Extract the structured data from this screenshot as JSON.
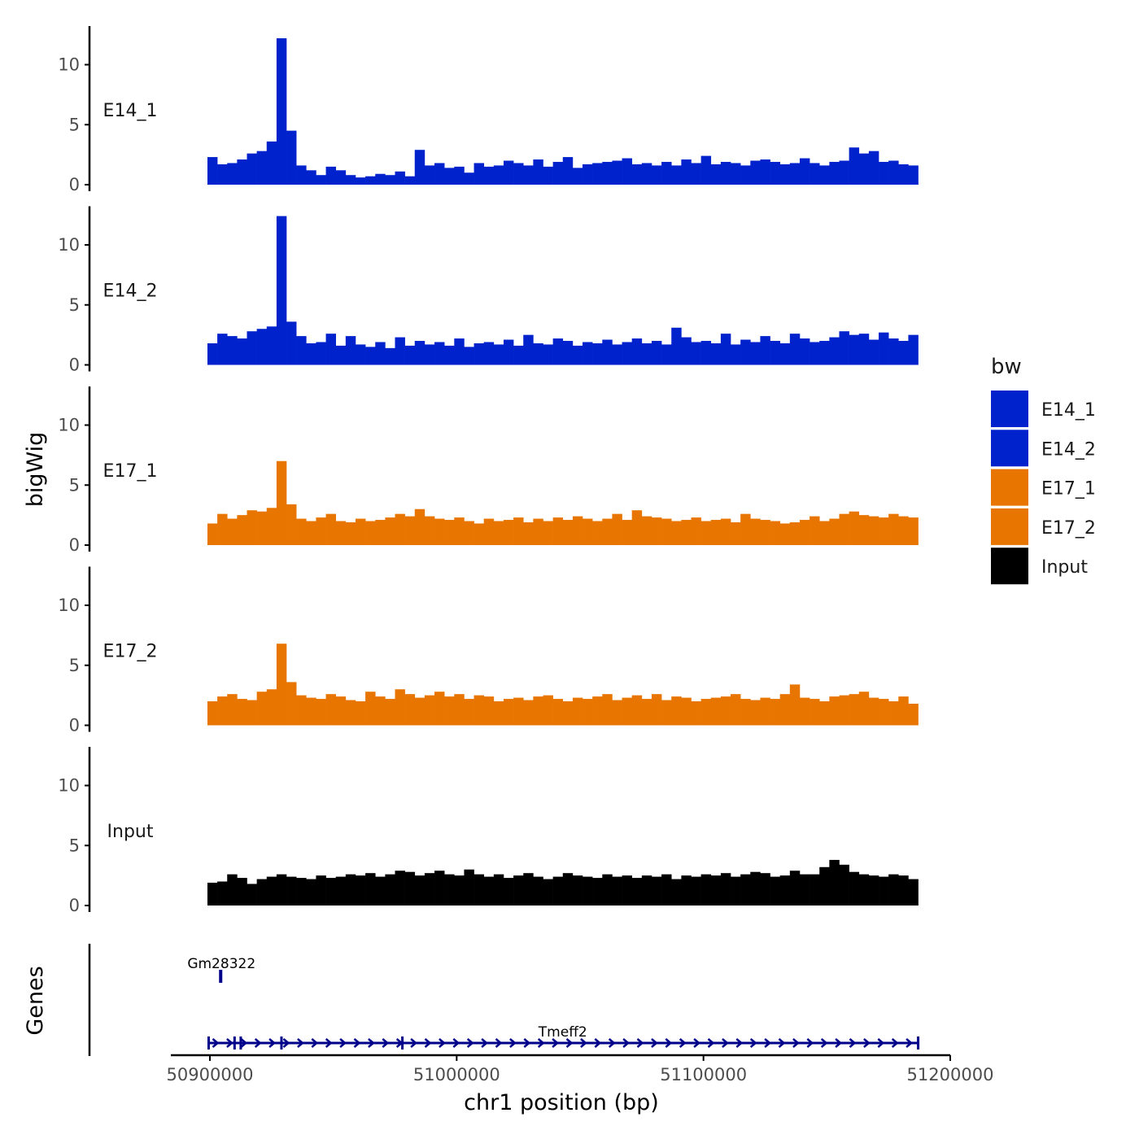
{
  "chart_data": {
    "type": "area",
    "title": "",
    "xlabel": "chr1 position (bp)",
    "ylabel": "bigWig",
    "gene_track_label": "Genes",
    "xlim": [
      50884000,
      51200000
    ],
    "x_ticks": [
      50900000,
      51000000,
      51100000,
      51200000
    ],
    "x_tick_labels": [
      "50900000",
      "51000000",
      "51100000",
      "51200000"
    ],
    "ylim": [
      0,
      13.3
    ],
    "y_ticks": [
      0,
      5,
      10
    ],
    "y_tick_labels": [
      "0",
      "5",
      "10"
    ],
    "bin_start": 50899000,
    "bin_size": 4000,
    "legend": {
      "title": "bw",
      "position": "right"
    },
    "series": [
      {
        "name": "E14_1",
        "color": "#0022CC",
        "values": [
          2.3,
          1.7,
          1.8,
          2.1,
          2.6,
          2.8,
          3.6,
          12.2,
          4.5,
          1.6,
          1.2,
          0.8,
          1.5,
          1.2,
          0.8,
          0.6,
          0.7,
          0.9,
          0.8,
          1.1,
          0.7,
          2.9,
          1.6,
          1.8,
          1.4,
          1.5,
          1.0,
          1.8,
          1.5,
          1.6,
          2.0,
          1.8,
          1.6,
          2.1,
          1.5,
          1.9,
          2.3,
          1.4,
          1.7,
          1.8,
          1.9,
          2.0,
          2.2,
          1.7,
          1.8,
          1.6,
          1.9,
          1.6,
          2.1,
          1.8,
          2.4,
          1.7,
          1.9,
          1.8,
          1.6,
          2.0,
          2.1,
          1.9,
          1.7,
          1.8,
          2.2,
          1.8,
          1.6,
          1.9,
          2.0,
          3.1,
          2.6,
          2.8,
          1.9,
          2.0,
          1.7,
          1.6
        ]
      },
      {
        "name": "E14_2",
        "color": "#0022CC",
        "values": [
          1.8,
          2.6,
          2.4,
          2.2,
          2.8,
          3.0,
          3.2,
          12.4,
          3.6,
          2.4,
          1.8,
          1.9,
          2.6,
          1.6,
          2.4,
          1.7,
          1.5,
          1.9,
          1.4,
          2.3,
          1.6,
          2.0,
          1.7,
          1.9,
          1.6,
          2.2,
          1.5,
          1.8,
          1.9,
          1.7,
          2.1,
          1.6,
          2.5,
          1.8,
          1.7,
          2.2,
          2.0,
          1.6,
          1.9,
          1.8,
          2.1,
          1.7,
          1.9,
          2.2,
          1.8,
          2.0,
          1.7,
          3.1,
          2.3,
          1.9,
          2.0,
          1.8,
          2.6,
          1.7,
          2.1,
          1.9,
          2.4,
          2.0,
          1.8,
          2.6,
          2.2,
          1.9,
          2.0,
          2.3,
          2.8,
          2.5,
          2.6,
          2.1,
          2.7,
          2.2,
          2.0,
          2.5
        ]
      },
      {
        "name": "E17_1",
        "color": "#E87500",
        "values": [
          1.8,
          2.6,
          2.2,
          2.5,
          2.9,
          2.8,
          3.1,
          7.0,
          3.4,
          2.2,
          2.0,
          2.3,
          2.6,
          2.0,
          1.9,
          2.2,
          2.0,
          2.1,
          2.3,
          2.6,
          2.4,
          3.0,
          2.4,
          2.2,
          2.1,
          2.3,
          2.0,
          1.8,
          2.2,
          2.0,
          2.1,
          2.3,
          1.9,
          2.2,
          2.0,
          2.3,
          2.1,
          2.4,
          2.2,
          2.0,
          2.2,
          2.6,
          2.1,
          2.9,
          2.4,
          2.3,
          2.2,
          2.0,
          2.1,
          2.3,
          2.0,
          2.1,
          2.2,
          1.9,
          2.6,
          2.2,
          2.1,
          2.0,
          1.8,
          1.9,
          2.1,
          2.4,
          2.0,
          2.2,
          2.6,
          2.8,
          2.5,
          2.4,
          2.3,
          2.6,
          2.4,
          2.3
        ]
      },
      {
        "name": "E17_2",
        "color": "#E87500",
        "values": [
          2.0,
          2.4,
          2.6,
          2.2,
          2.1,
          2.8,
          3.0,
          6.8,
          3.6,
          2.5,
          2.3,
          2.2,
          2.6,
          2.4,
          2.1,
          2.0,
          2.8,
          2.4,
          2.2,
          3.0,
          2.6,
          2.3,
          2.5,
          2.8,
          2.4,
          2.6,
          2.2,
          2.5,
          2.4,
          2.0,
          2.2,
          2.3,
          2.1,
          2.4,
          2.5,
          2.2,
          2.0,
          2.3,
          2.2,
          2.4,
          2.6,
          2.1,
          2.3,
          2.5,
          2.2,
          2.6,
          2.1,
          2.4,
          2.3,
          2.0,
          2.2,
          2.3,
          2.4,
          2.6,
          2.2,
          2.1,
          2.3,
          2.2,
          2.6,
          3.4,
          2.3,
          2.2,
          2.0,
          2.4,
          2.5,
          2.6,
          2.8,
          2.3,
          2.2,
          2.0,
          2.4,
          1.8
        ]
      },
      {
        "name": "Input",
        "color": "#000000",
        "values": [
          1.9,
          2.0,
          2.6,
          2.3,
          1.8,
          2.2,
          2.4,
          2.6,
          2.4,
          2.3,
          2.2,
          2.5,
          2.3,
          2.4,
          2.6,
          2.5,
          2.7,
          2.4,
          2.6,
          2.9,
          2.8,
          2.5,
          2.7,
          2.9,
          2.6,
          2.5,
          3.0,
          2.6,
          2.4,
          2.6,
          2.3,
          2.5,
          2.7,
          2.4,
          2.2,
          2.4,
          2.7,
          2.5,
          2.4,
          2.3,
          2.6,
          2.4,
          2.5,
          2.3,
          2.5,
          2.4,
          2.6,
          2.2,
          2.5,
          2.4,
          2.6,
          2.5,
          2.7,
          2.4,
          2.6,
          2.8,
          2.7,
          2.4,
          2.5,
          2.9,
          2.6,
          2.6,
          3.2,
          3.8,
          3.4,
          2.8,
          2.6,
          2.5,
          2.4,
          2.6,
          2.5,
          2.2
        ]
      }
    ],
    "genes": [
      {
        "name": "Gm28322",
        "start": 50904200,
        "end": 50905200,
        "strand": "+",
        "row": 1
      },
      {
        "name": "Tmeff2",
        "start": 50899500,
        "end": 51187000,
        "strand": "+",
        "row": 0
      }
    ],
    "gene_color": "#00008B"
  }
}
